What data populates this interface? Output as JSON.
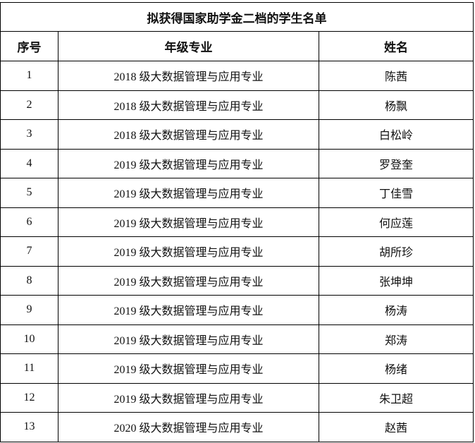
{
  "title": "拟获得国家助学金二档的学生名单",
  "headers": [
    "序号",
    "年级专业",
    "姓名"
  ],
  "rows": [
    [
      "1",
      "2018 级大数据管理与应用专业",
      "陈茜"
    ],
    [
      "2",
      "2018 级大数据管理与应用专业",
      "杨飘"
    ],
    [
      "3",
      "2018 级大数据管理与应用专业",
      "白松岭"
    ],
    [
      "4",
      "2019 级大数据管理与应用专业",
      "罗登奎"
    ],
    [
      "5",
      "2019 级大数据管理与应用专业",
      "丁佳雪"
    ],
    [
      "6",
      "2019 级大数据管理与应用专业",
      "何应莲"
    ],
    [
      "7",
      "2019 级大数据管理与应用专业",
      "胡所珍"
    ],
    [
      "8",
      "2019 级大数据管理与应用专业",
      "张坤坤"
    ],
    [
      "9",
      "2019 级大数据管理与应用专业",
      "杨涛"
    ],
    [
      "10",
      "2019 级大数据管理与应用专业",
      "郑涛"
    ],
    [
      "11",
      "2019 级大数据管理与应用专业",
      "杨绪"
    ],
    [
      "12",
      "2019 级大数据管理与应用专业",
      "朱卫超"
    ],
    [
      "13",
      "2020 级大数据管理与应用专业",
      "赵茜"
    ]
  ]
}
